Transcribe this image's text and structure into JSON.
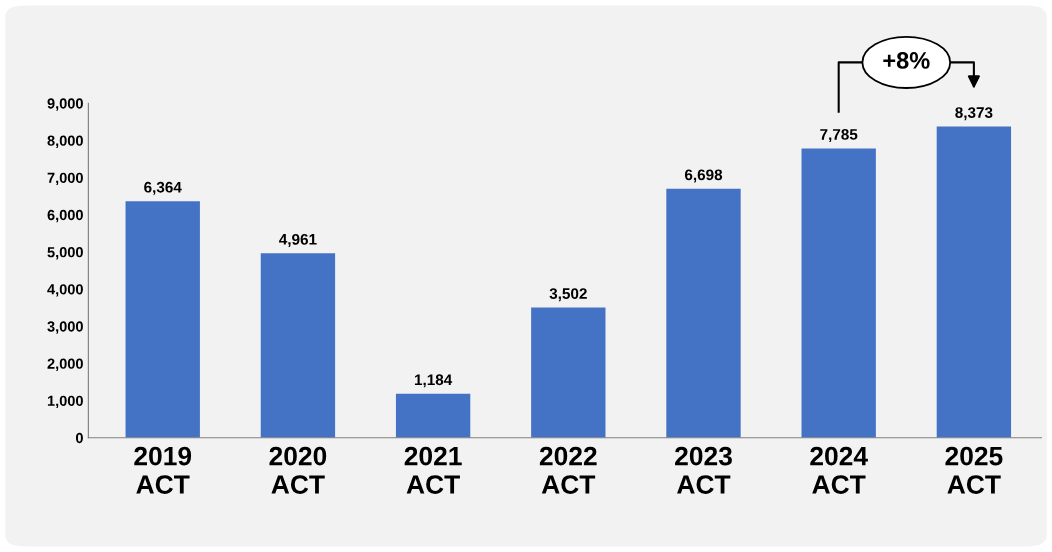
{
  "chart_data": {
    "type": "bar",
    "categories": [
      "2019\nACT",
      "2020\nACT",
      "2021\nACT",
      "2022\nACT",
      "2023\nACT",
      "2024\nACT",
      "2025\nACT"
    ],
    "values": [
      6364,
      4961,
      1184,
      3502,
      6698,
      7785,
      8373
    ],
    "color": "#4472c4",
    "value_labels": [
      "6,364",
      "4,961",
      "1,184",
      "3,502",
      "6,698",
      "7,785",
      "8,373"
    ],
    "ylim": [
      0,
      9000
    ],
    "yticks": [
      {
        "value": 0,
        "label": "0"
      },
      {
        "value": 1000,
        "label": "1,000"
      },
      {
        "value": 2000,
        "label": "2,000"
      },
      {
        "value": 3000,
        "label": "3,000"
      },
      {
        "value": 4000,
        "label": "4,000"
      },
      {
        "value": 5000,
        "label": "5,000"
      },
      {
        "value": 6000,
        "label": "6,000"
      },
      {
        "value": 7000,
        "label": "7,000"
      },
      {
        "value": 8000,
        "label": "8,000"
      },
      {
        "value": 9000,
        "label": "9,000"
      }
    ],
    "grid": false,
    "legend": false,
    "annotations": [
      "+8%"
    ]
  }
}
